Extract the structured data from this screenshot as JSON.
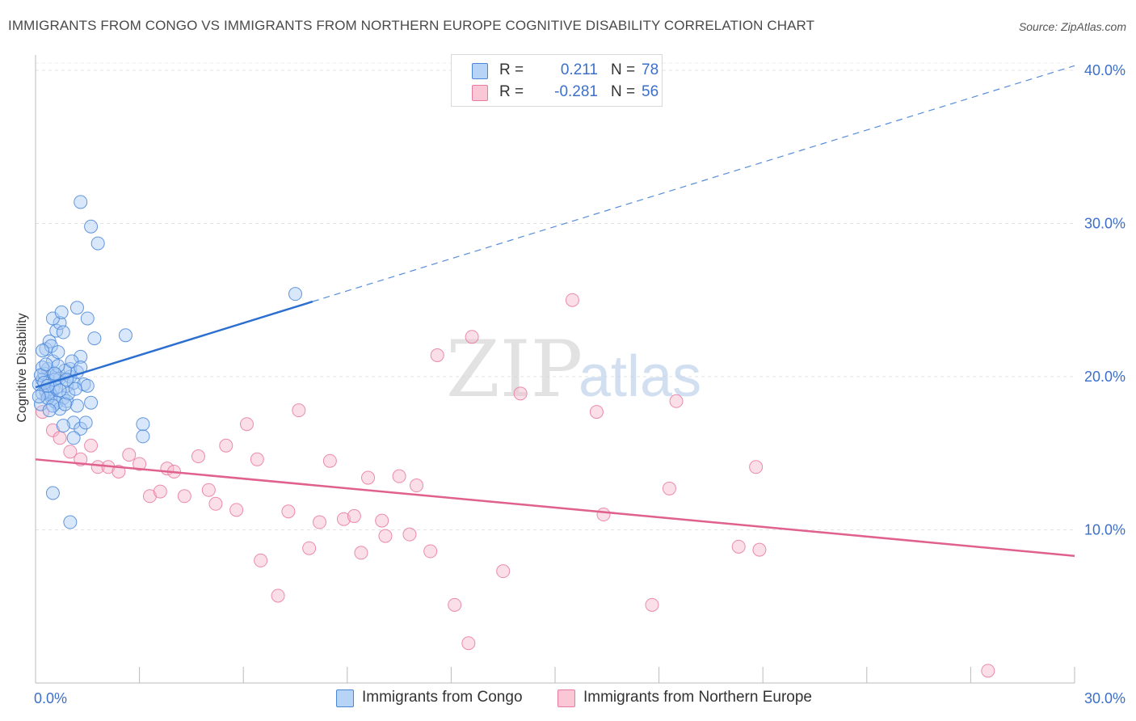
{
  "title": "IMMIGRANTS FROM CONGO VS IMMIGRANTS FROM NORTHERN EUROPE COGNITIVE DISABILITY CORRELATION CHART",
  "source": "Source: ZipAtlas.com",
  "watermark": {
    "zip": "ZIP",
    "atlas": "atlas"
  },
  "colors": {
    "congo": "#4a86d8",
    "congo_line": "#2c6fd1",
    "north": "#e8799f",
    "north_line": "#e0608e",
    "axis_text": "#3b6fc9"
  },
  "legend": {
    "rows": [
      {
        "r_label": "R =",
        "r_value": "0.211",
        "n_label": "N =",
        "n_value": "78"
      },
      {
        "r_label": "R =",
        "r_value": "-0.281",
        "n_label": "N =",
        "n_value": "56"
      }
    ]
  },
  "bottom_legend": {
    "congo": "Immigrants from Congo",
    "north": "Immigrants from Northern Europe"
  },
  "chart_data": {
    "type": "scatter",
    "title": "IMMIGRANTS FROM CONGO VS IMMIGRANTS FROM NORTHERN EUROPE COGNITIVE DISABILITY CORRELATION CHART",
    "xlabel": "",
    "ylabel": "Cognitive Disability",
    "xlim": [
      0,
      30
    ],
    "ylim": [
      0,
      41
    ],
    "x_tick_labels": [
      "0.0%",
      "30.0%"
    ],
    "y_ticks": [
      10,
      20,
      30,
      40
    ],
    "y_tick_labels": [
      "10.0%",
      "20.0%",
      "30.0%",
      "40.0%"
    ],
    "grid": true,
    "series": [
      {
        "name": "Immigrants from Congo",
        "R": 0.211,
        "N": 78,
        "trend": {
          "x0": 0,
          "y0": 19.3,
          "x1": 8.0,
          "y1": 24.9,
          "dash_x1": 30.0,
          "dash_y1": 40.3
        },
        "points": [
          [
            0.1,
            19.5
          ],
          [
            0.2,
            19.8
          ],
          [
            0.15,
            18.2
          ],
          [
            0.3,
            19.0
          ],
          [
            0.25,
            20.2
          ],
          [
            0.35,
            20.5
          ],
          [
            0.4,
            19.7
          ],
          [
            0.5,
            19.2
          ],
          [
            0.45,
            18.8
          ],
          [
            0.55,
            18.4
          ],
          [
            0.6,
            20.1
          ],
          [
            0.7,
            19.9
          ],
          [
            0.8,
            18.6
          ],
          [
            0.9,
            19.4
          ],
          [
            1.0,
            20.0
          ],
          [
            1.1,
            19.6
          ],
          [
            0.3,
            21.8
          ],
          [
            0.4,
            22.3
          ],
          [
            0.5,
            21.0
          ],
          [
            0.6,
            23.0
          ],
          [
            0.7,
            23.5
          ],
          [
            0.8,
            22.9
          ],
          [
            0.5,
            23.8
          ],
          [
            0.75,
            24.2
          ],
          [
            1.2,
            24.5
          ],
          [
            1.5,
            23.8
          ],
          [
            1.3,
            21.3
          ],
          [
            1.7,
            22.5
          ],
          [
            2.6,
            22.7
          ],
          [
            1.0,
            20.5
          ],
          [
            1.2,
            20.3
          ],
          [
            1.4,
            19.5
          ],
          [
            0.3,
            19.1
          ],
          [
            0.2,
            20.6
          ],
          [
            0.6,
            18.3
          ],
          [
            0.9,
            18.4
          ],
          [
            1.1,
            17.0
          ],
          [
            1.3,
            16.6
          ],
          [
            1.45,
            17.0
          ],
          [
            0.8,
            16.8
          ],
          [
            1.6,
            18.3
          ],
          [
            0.7,
            17.9
          ],
          [
            1.1,
            16.0
          ],
          [
            0.4,
            19.0
          ],
          [
            0.6,
            19.3
          ],
          [
            0.2,
            18.9
          ],
          [
            0.35,
            18.6
          ],
          [
            0.55,
            19.8
          ],
          [
            0.15,
            20.1
          ],
          [
            0.95,
            18.9
          ],
          [
            0.85,
            20.4
          ],
          [
            0.65,
            20.7
          ],
          [
            1.05,
            21.0
          ],
          [
            0.45,
            22.0
          ],
          [
            0.55,
            20.2
          ],
          [
            0.25,
            19.6
          ],
          [
            1.3,
            20.6
          ],
          [
            3.1,
            16.9
          ],
          [
            3.1,
            16.1
          ],
          [
            1.3,
            31.4
          ],
          [
            1.6,
            29.8
          ],
          [
            1.8,
            28.7
          ],
          [
            7.5,
            25.4
          ],
          [
            0.5,
            12.4
          ],
          [
            1.0,
            10.5
          ],
          [
            0.3,
            20.8
          ],
          [
            0.5,
            18.1
          ],
          [
            0.7,
            19.1
          ],
          [
            0.1,
            18.7
          ],
          [
            0.9,
            19.8
          ],
          [
            1.2,
            18.1
          ],
          [
            0.4,
            17.8
          ],
          [
            1.5,
            19.4
          ],
          [
            1.15,
            19.2
          ],
          [
            0.65,
            21.6
          ],
          [
            0.85,
            18.2
          ],
          [
            0.2,
            21.7
          ],
          [
            0.35,
            19.4
          ]
        ]
      },
      {
        "name": "Immigrants from Northern Europe",
        "R": -0.281,
        "N": 56,
        "trend": {
          "x0": 0,
          "y0": 14.6,
          "x1": 30.0,
          "y1": 8.3
        },
        "points": [
          [
            0.2,
            17.7
          ],
          [
            0.5,
            16.5
          ],
          [
            0.7,
            16.0
          ],
          [
            1.0,
            15.1
          ],
          [
            1.3,
            14.6
          ],
          [
            1.6,
            15.5
          ],
          [
            1.8,
            14.1
          ],
          [
            2.1,
            14.1
          ],
          [
            2.4,
            13.8
          ],
          [
            2.7,
            14.9
          ],
          [
            3.0,
            14.3
          ],
          [
            3.3,
            12.2
          ],
          [
            3.6,
            12.5
          ],
          [
            3.8,
            14.0
          ],
          [
            4.0,
            13.8
          ],
          [
            4.3,
            12.2
          ],
          [
            4.7,
            14.8
          ],
          [
            5.0,
            12.6
          ],
          [
            5.2,
            11.7
          ],
          [
            5.5,
            15.5
          ],
          [
            5.8,
            11.3
          ],
          [
            6.1,
            16.9
          ],
          [
            6.4,
            14.6
          ],
          [
            6.5,
            8.0
          ],
          [
            7.0,
            5.7
          ],
          [
            7.3,
            11.2
          ],
          [
            7.6,
            17.8
          ],
          [
            7.9,
            8.8
          ],
          [
            8.2,
            10.5
          ],
          [
            8.5,
            14.5
          ],
          [
            8.9,
            10.7
          ],
          [
            9.2,
            10.9
          ],
          [
            9.4,
            8.5
          ],
          [
            9.6,
            13.4
          ],
          [
            10.0,
            10.6
          ],
          [
            10.1,
            9.6
          ],
          [
            10.5,
            13.5
          ],
          [
            10.8,
            9.7
          ],
          [
            11.0,
            12.9
          ],
          [
            11.4,
            8.6
          ],
          [
            11.6,
            21.4
          ],
          [
            12.1,
            5.1
          ],
          [
            12.5,
            2.6
          ],
          [
            12.6,
            22.6
          ],
          [
            13.5,
            7.3
          ],
          [
            14.0,
            18.9
          ],
          [
            15.5,
            25.0
          ],
          [
            16.2,
            17.7
          ],
          [
            16.4,
            11.0
          ],
          [
            17.8,
            5.1
          ],
          [
            18.3,
            12.7
          ],
          [
            18.5,
            18.4
          ],
          [
            20.3,
            8.9
          ],
          [
            20.8,
            14.1
          ],
          [
            20.9,
            8.7
          ],
          [
            27.5,
            0.8
          ]
        ]
      }
    ]
  }
}
